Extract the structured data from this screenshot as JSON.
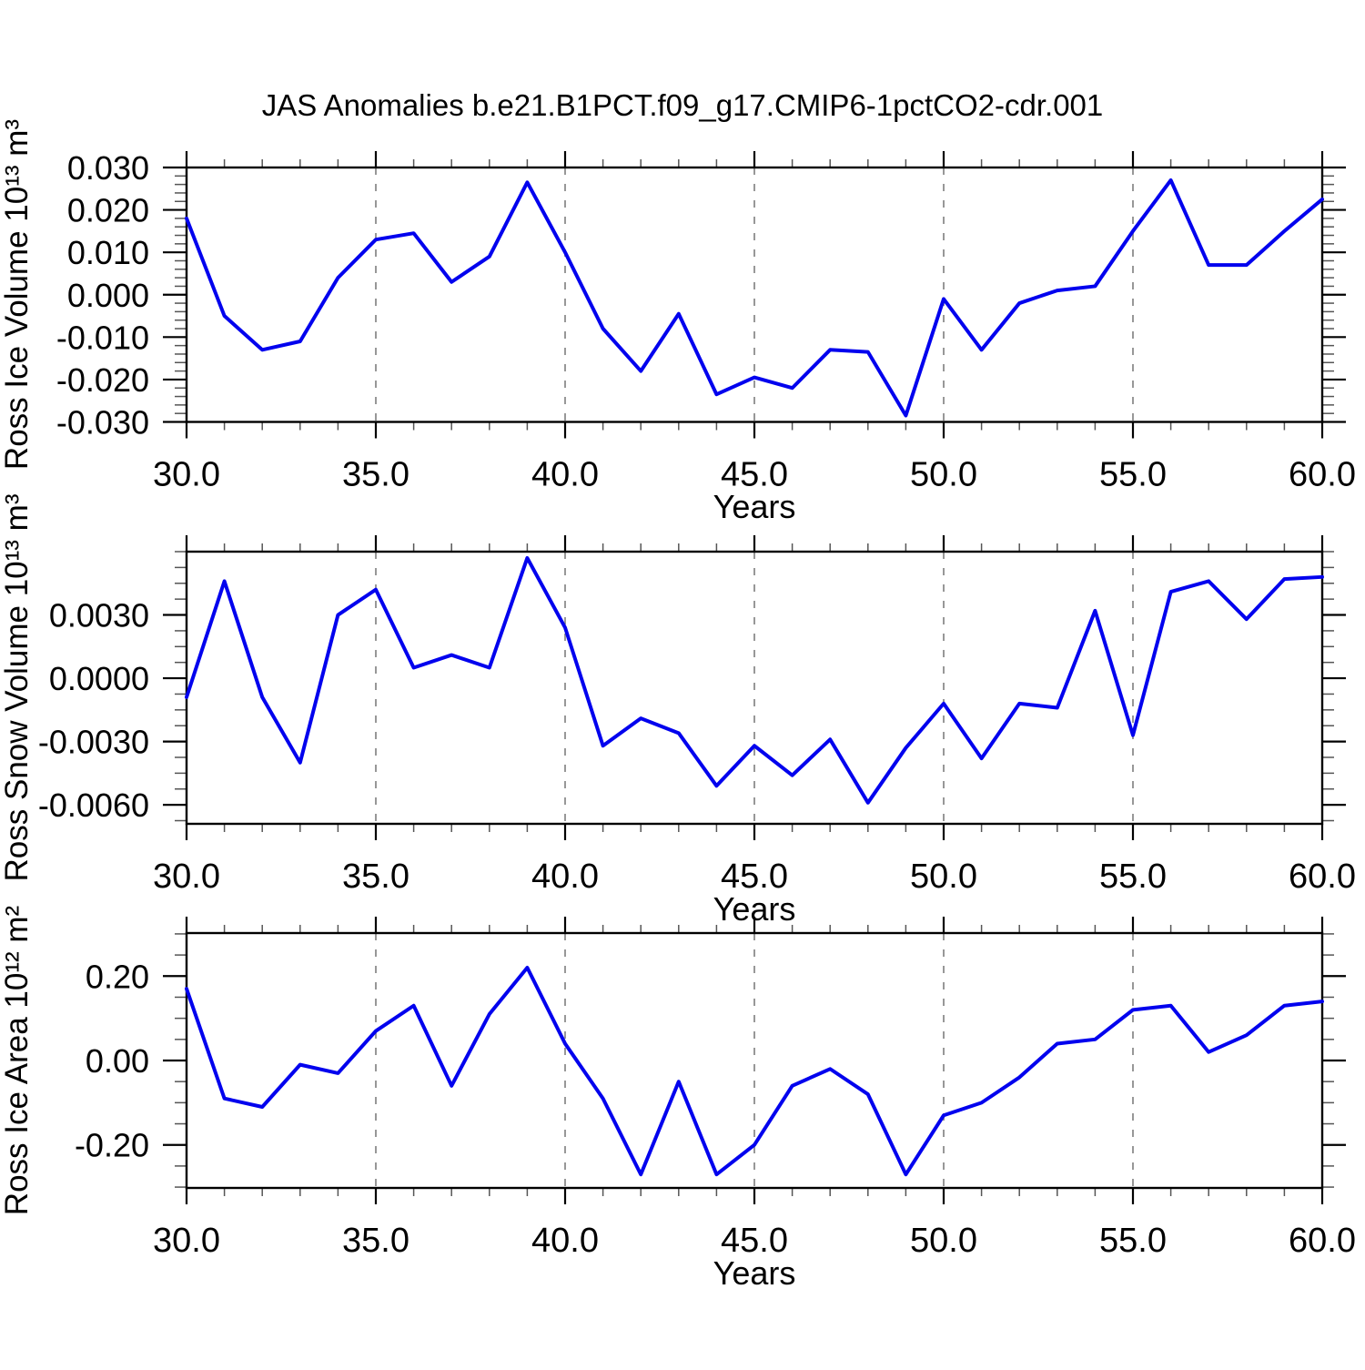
{
  "title": "JAS Anomalies b.e21.B1PCT.f09_g17.CMIP6-1pctCO2-cdr.001",
  "colors": {
    "line": "#0202ee",
    "frame": "#000000",
    "gridline": "#8c8c8c",
    "text": "#000000",
    "background": "#ffffff"
  },
  "chart_data": [
    {
      "type": "line",
      "title": "",
      "ylabel": "Ross Ice Volume 10¹³ m³",
      "xlabel": "Years",
      "x": [
        30,
        31,
        32,
        33,
        34,
        35,
        36,
        37,
        38,
        39,
        40,
        41,
        42,
        43,
        44,
        45,
        46,
        47,
        48,
        49,
        50,
        51,
        52,
        53,
        54,
        55,
        56,
        57,
        58,
        59,
        60
      ],
      "values": [
        0.018,
        -0.005,
        -0.013,
        -0.011,
        0.004,
        0.013,
        0.0145,
        0.003,
        0.009,
        0.0265,
        0.01,
        -0.008,
        -0.018,
        -0.0045,
        -0.0235,
        -0.0195,
        -0.022,
        -0.013,
        -0.0135,
        -0.0285,
        -0.001,
        -0.013,
        -0.002,
        0.001,
        0.002,
        0.015,
        0.027,
        0.007,
        0.007,
        0.015,
        0.0225
      ],
      "xlim": [
        30,
        60
      ],
      "ylim": [
        -0.03,
        0.03
      ],
      "yticks": [
        0.03,
        0.02,
        0.01,
        0.0,
        -0.01,
        -0.02,
        -0.03
      ],
      "ytick_labels": [
        "0.030",
        "0.020",
        "0.010",
        "0.000",
        "-0.010",
        "-0.020",
        "-0.030"
      ],
      "yminor_step": 0.002,
      "xticks": [
        30,
        35,
        40,
        45,
        50,
        55,
        60
      ],
      "xtick_labels": [
        "30.0",
        "35.0",
        "40.0",
        "45.0",
        "50.0",
        "55.0",
        "60.0"
      ],
      "xminor_step": 1,
      "grid_x": [
        35,
        40,
        45,
        50,
        55
      ],
      "grid_on": true,
      "legend": "none"
    },
    {
      "type": "line",
      "title": "",
      "ylabel": "Ross Snow Volume 10¹³ m³",
      "xlabel": "Years",
      "x": [
        30,
        31,
        32,
        33,
        34,
        35,
        36,
        37,
        38,
        39,
        40,
        41,
        42,
        43,
        44,
        45,
        46,
        47,
        48,
        49,
        50,
        51,
        52,
        53,
        54,
        55,
        56,
        57,
        58,
        59,
        60
      ],
      "values": [
        -0.0009,
        0.0046,
        -0.0009,
        -0.004,
        0.003,
        0.0042,
        0.0005,
        0.0011,
        0.0005,
        0.0057,
        0.0024,
        -0.0032,
        -0.0019,
        -0.0026,
        -0.0051,
        -0.0032,
        -0.0046,
        -0.0029,
        -0.0059,
        -0.0033,
        -0.0012,
        -0.0038,
        -0.0012,
        -0.0014,
        0.0032,
        -0.0027,
        0.0041,
        0.0046,
        0.0028,
        0.0047,
        0.0048
      ],
      "xlim": [
        30,
        60
      ],
      "ylim": [
        -0.0069,
        0.006
      ],
      "yticks": [
        0.003,
        0.0,
        -0.003,
        -0.006
      ],
      "ytick_labels": [
        "0.0030",
        "0.0000",
        "-0.0030",
        "-0.0060"
      ],
      "yminor_step": 0.00075,
      "xticks": [
        30,
        35,
        40,
        45,
        50,
        55,
        60
      ],
      "xtick_labels": [
        "30.0",
        "35.0",
        "40.0",
        "45.0",
        "50.0",
        "55.0",
        "60.0"
      ],
      "xminor_step": 1,
      "grid_x": [
        35,
        40,
        45,
        50,
        55
      ],
      "grid_on": true,
      "legend": "none"
    },
    {
      "type": "line",
      "title": "",
      "ylabel": "Ross Ice Area 10¹² m²",
      "xlabel": "Years",
      "x": [
        30,
        31,
        32,
        33,
        34,
        35,
        36,
        37,
        38,
        39,
        40,
        41,
        42,
        43,
        44,
        45,
        46,
        47,
        48,
        49,
        50,
        51,
        52,
        53,
        54,
        55,
        56,
        57,
        58,
        59,
        60
      ],
      "values": [
        0.17,
        -0.09,
        -0.11,
        -0.01,
        -0.03,
        0.07,
        0.13,
        -0.06,
        0.11,
        0.22,
        0.04,
        -0.09,
        -0.27,
        -0.05,
        -0.27,
        -0.2,
        -0.06,
        -0.02,
        -0.08,
        -0.27,
        -0.13,
        -0.1,
        -0.04,
        0.04,
        0.05,
        0.12,
        0.13,
        0.02,
        0.06,
        0.13,
        0.14
      ],
      "xlim": [
        30,
        60
      ],
      "ylim": [
        -0.302,
        0.302
      ],
      "yticks": [
        0.2,
        0.0,
        -0.2
      ],
      "ytick_labels": [
        "0.20",
        "0.00",
        "-0.20"
      ],
      "yminor_step": 0.05,
      "xticks": [
        30,
        35,
        40,
        45,
        50,
        55,
        60
      ],
      "xtick_labels": [
        "30.0",
        "35.0",
        "40.0",
        "45.0",
        "50.0",
        "55.0",
        "60.0"
      ],
      "xminor_step": 1,
      "grid_x": [
        35,
        40,
        45,
        50,
        55
      ],
      "grid_on": true,
      "legend": "none"
    }
  ]
}
